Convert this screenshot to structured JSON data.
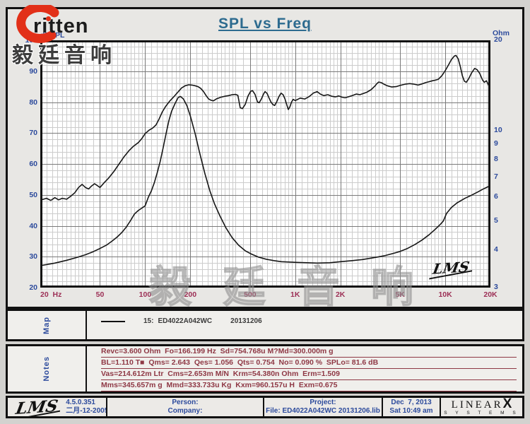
{
  "header": {
    "brand": "ritten",
    "title": "SPL vs Freq"
  },
  "watermarks": {
    "top_left": "毅廷音响",
    "bottom_center": "毅 廷 音 响"
  },
  "chart": {
    "corner_logo": "LMS"
  },
  "colors": {
    "accent_blue": "#2c4a9c",
    "axis_red": "#9c2f55",
    "title_teal": "#2d6b8f",
    "notes_red": "#8e3744",
    "brand_red": "#e23018",
    "curve_black": "#161616"
  },
  "chart_data": {
    "type": "line",
    "title": "SPL vs Freq",
    "grid": true,
    "x_axis": {
      "unit": "Hz",
      "scale": "log",
      "min": 20,
      "max": 20000,
      "ticks": [
        {
          "v": 20,
          "label": "20  Hz"
        },
        {
          "v": 50,
          "label": "50"
        },
        {
          "v": 100,
          "label": "100"
        },
        {
          "v": 200,
          "label": "200"
        },
        {
          "v": 500,
          "label": "500"
        },
        {
          "v": 1000,
          "label": "1K"
        },
        {
          "v": 2000,
          "label": "2K"
        },
        {
          "v": 5000,
          "label": "5K"
        },
        {
          "v": 10000,
          "label": "10K"
        },
        {
          "v": 20000,
          "label": "20K"
        }
      ],
      "majors": [
        50,
        100,
        200,
        500,
        1000,
        2000,
        5000,
        10000
      ]
    },
    "y_left": {
      "label": "dBSPL",
      "scale": "linear",
      "min": 20,
      "max": 100,
      "tick_step": 10,
      "minor_step": 2,
      "ticks": [
        100,
        90,
        80,
        70,
        60,
        50,
        40,
        30,
        20
      ]
    },
    "y_right": {
      "label": "Ohm",
      "scale": "log",
      "min": 3,
      "max": 20,
      "ticks": [
        20,
        10,
        9,
        8,
        7,
        6,
        5,
        4,
        3
      ]
    },
    "series": [
      {
        "name": "SPL (dBSPL)",
        "axis": "left",
        "points": [
          [
            20,
            48.3
          ],
          [
            22,
            48.9
          ],
          [
            23.5,
            48.2
          ],
          [
            25,
            49.1
          ],
          [
            26.5,
            48.4
          ],
          [
            28,
            48.9
          ],
          [
            30,
            48.6
          ],
          [
            32,
            49.6
          ],
          [
            34,
            50.7
          ],
          [
            36,
            52.4
          ],
          [
            38,
            53.4
          ],
          [
            40,
            52.4
          ],
          [
            42,
            51.9
          ],
          [
            44,
            52.9
          ],
          [
            46,
            53.6
          ],
          [
            48,
            53.0
          ],
          [
            50,
            52.4
          ],
          [
            53,
            53.8
          ],
          [
            57,
            55.4
          ],
          [
            62,
            57.6
          ],
          [
            67,
            60.0
          ],
          [
            72,
            62.2
          ],
          [
            78,
            64.3
          ],
          [
            84,
            65.8
          ],
          [
            90,
            66.9
          ],
          [
            95,
            68.2
          ],
          [
            100,
            69.8
          ],
          [
            106,
            70.9
          ],
          [
            112,
            71.6
          ],
          [
            118,
            72.6
          ],
          [
            124,
            74.6
          ],
          [
            130,
            76.8
          ],
          [
            137,
            78.6
          ],
          [
            145,
            80.2
          ],
          [
            155,
            81.7
          ],
          [
            165,
            83.2
          ],
          [
            175,
            84.6
          ],
          [
            185,
            85.3
          ],
          [
            195,
            85.6
          ],
          [
            205,
            85.5
          ],
          [
            215,
            85.3
          ],
          [
            225,
            85.0
          ],
          [
            235,
            84.4
          ],
          [
            245,
            83.4
          ],
          [
            255,
            82.1
          ],
          [
            265,
            81.0
          ],
          [
            275,
            80.6
          ],
          [
            285,
            80.4
          ],
          [
            300,
            81.1
          ],
          [
            320,
            81.6
          ],
          [
            340,
            81.9
          ],
          [
            360,
            82.1
          ],
          [
            380,
            82.4
          ],
          [
            400,
            82.5
          ],
          [
            415,
            82.2
          ],
          [
            430,
            78.2
          ],
          [
            445,
            77.9
          ],
          [
            465,
            79.3
          ],
          [
            485,
            82.0
          ],
          [
            505,
            83.5
          ],
          [
            520,
            83.7
          ],
          [
            540,
            82.5
          ],
          [
            560,
            80.1
          ],
          [
            575,
            79.8
          ],
          [
            595,
            81.0
          ],
          [
            615,
            82.6
          ],
          [
            630,
            83.4
          ],
          [
            650,
            82.8
          ],
          [
            670,
            81.3
          ],
          [
            690,
            80.0
          ],
          [
            710,
            79.2
          ],
          [
            730,
            78.9
          ],
          [
            755,
            80.2
          ],
          [
            780,
            81.8
          ],
          [
            805,
            82.9
          ],
          [
            830,
            82.4
          ],
          [
            855,
            81.0
          ],
          [
            880,
            79.0
          ],
          [
            900,
            77.6
          ],
          [
            920,
            78.4
          ],
          [
            945,
            80.0
          ],
          [
            970,
            80.9
          ],
          [
            1000,
            80.5
          ],
          [
            1040,
            80.9
          ],
          [
            1080,
            81.3
          ],
          [
            1160,
            81.0
          ],
          [
            1240,
            81.8
          ],
          [
            1320,
            82.9
          ],
          [
            1400,
            83.4
          ],
          [
            1470,
            82.6
          ],
          [
            1550,
            82.1
          ],
          [
            1650,
            82.4
          ],
          [
            1750,
            81.9
          ],
          [
            1850,
            81.7
          ],
          [
            1950,
            82.0
          ],
          [
            2050,
            81.6
          ],
          [
            2150,
            81.4
          ],
          [
            2250,
            81.7
          ],
          [
            2400,
            82.1
          ],
          [
            2550,
            82.6
          ],
          [
            2700,
            82.4
          ],
          [
            2850,
            82.8
          ],
          [
            3000,
            83.2
          ],
          [
            3200,
            84.0
          ],
          [
            3400,
            85.2
          ],
          [
            3500,
            86.0
          ],
          [
            3600,
            86.5
          ],
          [
            3750,
            86.3
          ],
          [
            3900,
            85.8
          ],
          [
            4100,
            85.3
          ],
          [
            4400,
            84.9
          ],
          [
            4700,
            85.0
          ],
          [
            5000,
            85.4
          ],
          [
            5400,
            85.8
          ],
          [
            5800,
            86.0
          ],
          [
            6200,
            85.8
          ],
          [
            6600,
            85.5
          ],
          [
            7000,
            85.9
          ],
          [
            7400,
            86.3
          ],
          [
            7800,
            86.6
          ],
          [
            8200,
            86.9
          ],
          [
            8600,
            87.1
          ],
          [
            9000,
            87.4
          ],
          [
            9500,
            88.6
          ],
          [
            10000,
            90.2
          ],
          [
            10500,
            92.0
          ],
          [
            11000,
            93.8
          ],
          [
            11500,
            94.9
          ],
          [
            11800,
            95.1
          ],
          [
            12200,
            94.0
          ],
          [
            12600,
            91.5
          ],
          [
            13000,
            88.5
          ],
          [
            13400,
            86.8
          ],
          [
            13800,
            86.4
          ],
          [
            14300,
            87.5
          ],
          [
            15000,
            89.5
          ],
          [
            15700,
            90.9
          ],
          [
            16300,
            90.5
          ],
          [
            17000,
            89.2
          ],
          [
            17700,
            87.2
          ],
          [
            18200,
            86.4
          ],
          [
            18800,
            86.9
          ],
          [
            19400,
            85.6
          ],
          [
            20000,
            83.9
          ]
        ]
      },
      {
        "name": "Impedance (Ohm)",
        "axis": "right",
        "points": [
          [
            20,
            3.55
          ],
          [
            25,
            3.62
          ],
          [
            30,
            3.7
          ],
          [
            35,
            3.78
          ],
          [
            40,
            3.86
          ],
          [
            45,
            3.95
          ],
          [
            50,
            4.05
          ],
          [
            55,
            4.15
          ],
          [
            60,
            4.28
          ],
          [
            65,
            4.42
          ],
          [
            70,
            4.58
          ],
          [
            75,
            4.78
          ],
          [
            80,
            5.02
          ],
          [
            85,
            5.28
          ],
          [
            90,
            5.42
          ],
          [
            95,
            5.52
          ],
          [
            100,
            5.62
          ],
          [
            105,
            6.0
          ],
          [
            110,
            6.3
          ],
          [
            115,
            6.7
          ],
          [
            120,
            7.2
          ],
          [
            126,
            7.9
          ],
          [
            132,
            8.8
          ],
          [
            138,
            9.8
          ],
          [
            144,
            10.8
          ],
          [
            150,
            11.6
          ],
          [
            158,
            12.3
          ],
          [
            166,
            12.9
          ],
          [
            172,
            13.0
          ],
          [
            180,
            12.75
          ],
          [
            190,
            12.1
          ],
          [
            200,
            11.2
          ],
          [
            215,
            9.8
          ],
          [
            230,
            8.5
          ],
          [
            250,
            7.2
          ],
          [
            270,
            6.3
          ],
          [
            290,
            5.7
          ],
          [
            315,
            5.2
          ],
          [
            345,
            4.75
          ],
          [
            380,
            4.4
          ],
          [
            420,
            4.15
          ],
          [
            465,
            3.98
          ],
          [
            510,
            3.88
          ],
          [
            570,
            3.79
          ],
          [
            640,
            3.73
          ],
          [
            720,
            3.69
          ],
          [
            810,
            3.66
          ],
          [
            910,
            3.65
          ],
          [
            1020,
            3.64
          ],
          [
            1200,
            3.63
          ],
          [
            1400,
            3.62
          ],
          [
            1700,
            3.63
          ],
          [
            2000,
            3.66
          ],
          [
            2400,
            3.69
          ],
          [
            2800,
            3.72
          ],
          [
            3200,
            3.76
          ],
          [
            3600,
            3.8
          ],
          [
            4000,
            3.84
          ],
          [
            4500,
            3.9
          ],
          [
            5000,
            3.96
          ],
          [
            5600,
            4.05
          ],
          [
            6300,
            4.18
          ],
          [
            7000,
            4.32
          ],
          [
            7800,
            4.5
          ],
          [
            8600,
            4.7
          ],
          [
            9300,
            4.88
          ],
          [
            9700,
            5.0
          ],
          [
            10200,
            5.3
          ],
          [
            11000,
            5.55
          ],
          [
            12000,
            5.75
          ],
          [
            13500,
            5.95
          ],
          [
            15000,
            6.1
          ],
          [
            16500,
            6.25
          ],
          [
            18000,
            6.4
          ],
          [
            19000,
            6.48
          ],
          [
            20000,
            6.55
          ]
        ]
      }
    ]
  },
  "map": {
    "label": "Map",
    "legend": {
      "index": "15:",
      "name": "ED4022A042WC",
      "date": "20131206"
    }
  },
  "notes": {
    "label": "Notes",
    "lines": [
      "Revc=3.600 Ohm  Fo=166.199 Hz  Sd=754.768u M?Md=300.000m g",
      "BL=1.110 T■  Qms= 2.643  Qes= 1.056  Qts= 0.754  No= 0.090 %  SPLo= 81.6 dB",
      "Vas=214.612m Ltr  Cms=2.653m M/N  Krm=54.380n Ohm  Erm=1.509",
      "Mms=345.657m g  Mmd=333.733u Kg  Kxm=960.157u H  Exm=0.675"
    ]
  },
  "footer": {
    "app_logo": "LMS",
    "version": "4.5.0.351",
    "release_date": "二月-12-2005",
    "person_label": "Person:",
    "company_label": "Company:",
    "project_label": "Project:",
    "file": "File: ED4022A042WC 20131206.lib",
    "date": "Dec  7, 2013",
    "time": "Sat 10:49 am",
    "vendor": {
      "name": "LINEAR",
      "x": "X",
      "sub": "S Y S T E M S"
    }
  }
}
